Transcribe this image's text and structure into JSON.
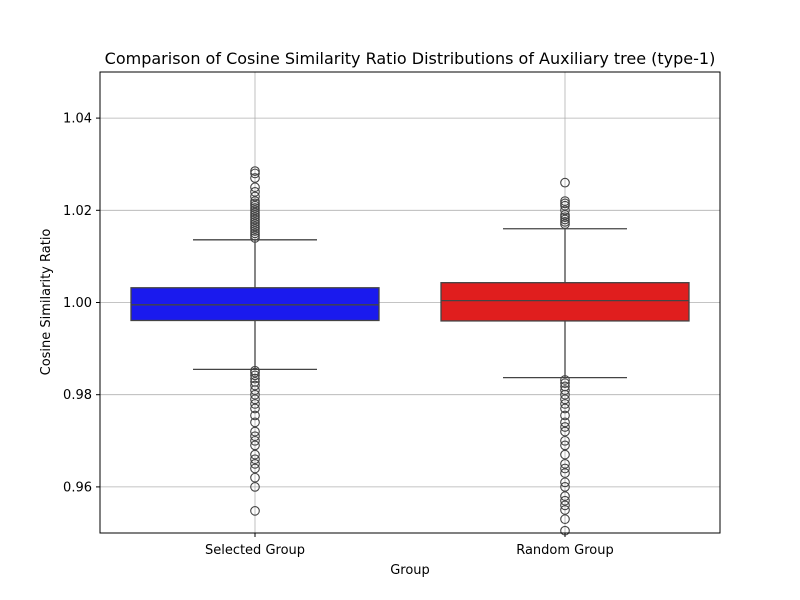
{
  "chart_data": {
    "type": "box",
    "title": "Comparison of Cosine Similarity Ratio Distributions of Auxiliary tree (type-1)",
    "xlabel": "Group",
    "ylabel": "Cosine Similarity Ratio",
    "ylim": [
      0.95,
      1.05
    ],
    "yticks": [
      0.96,
      0.98,
      1.0,
      1.02,
      1.04
    ],
    "ytick_labels": [
      "0.96",
      "0.98",
      "1.00",
      "1.02",
      "1.04"
    ],
    "grid": true,
    "categories": [
      "Selected Group",
      "Random Group"
    ],
    "boxes": [
      {
        "name": "Selected Group",
        "color": "#1a1aee",
        "whisker_low": 0.9855,
        "q1": 0.9961,
        "median": 0.9995,
        "q3": 1.0032,
        "whisker_high": 1.0136,
        "outliers": [
          1.0285,
          1.028,
          1.027,
          1.025,
          1.024,
          1.023,
          1.022,
          1.0215,
          1.021,
          1.0205,
          1.02,
          1.0195,
          1.019,
          1.0185,
          1.018,
          1.0175,
          1.017,
          1.0165,
          1.016,
          1.0155,
          1.015,
          1.0145,
          1.014,
          0.9852,
          0.9848,
          0.9842,
          0.9835,
          0.9828,
          0.982,
          0.981,
          0.98,
          0.979,
          0.978,
          0.977,
          0.9755,
          0.974,
          0.972,
          0.971,
          0.97,
          0.969,
          0.967,
          0.966,
          0.965,
          0.964,
          0.962,
          0.96,
          0.9548
        ]
      },
      {
        "name": "Random Group",
        "color": "#e01e1e",
        "whisker_low": 0.9837,
        "q1": 0.996,
        "median": 1.0004,
        "q3": 1.0043,
        "whisker_high": 1.016,
        "outliers": [
          1.026,
          1.022,
          1.0215,
          1.021,
          1.02,
          1.019,
          1.0185,
          1.018,
          1.0175,
          1.017,
          0.9832,
          0.9825,
          0.9818,
          0.981,
          0.98,
          0.979,
          0.978,
          0.977,
          0.9755,
          0.974,
          0.973,
          0.972,
          0.97,
          0.969,
          0.967,
          0.965,
          0.964,
          0.963,
          0.961,
          0.96,
          0.958,
          0.957,
          0.956,
          0.955,
          0.953,
          0.9505
        ]
      }
    ]
  }
}
